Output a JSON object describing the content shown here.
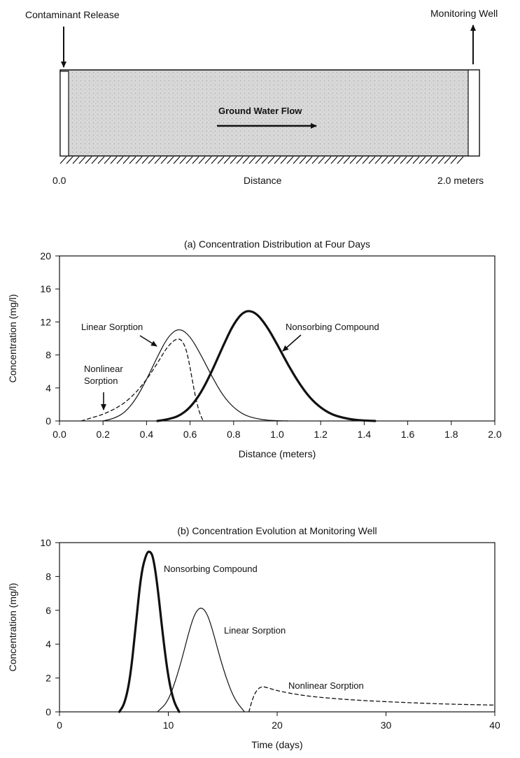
{
  "schematic": {
    "release_label": "Contaminant Release",
    "well_label": "Monitoring Well",
    "flow_label": "Ground Water Flow",
    "distance_label": "Distance",
    "start_label": "0.0",
    "end_label": "2.0 meters"
  },
  "chart_data": [
    {
      "type": "line",
      "title": "(a) Concentration Distribution at Four Days",
      "xlabel": "Distance (meters)",
      "ylabel": "Concentration (mg/l)",
      "xlim": [
        0,
        2.0
      ],
      "ylim": [
        0,
        20
      ],
      "xticks": [
        "0.0",
        "0.2",
        "0.4",
        "0.6",
        "0.8",
        "1.0",
        "1.2",
        "1.4",
        "1.6",
        "1.8",
        "2.0"
      ],
      "yticks": [
        "0",
        "4",
        "8",
        "12",
        "16",
        "20"
      ],
      "grid": false,
      "series": [
        {
          "name": "Nonsorbing Compound",
          "style": "bold",
          "x": [
            0.45,
            0.5,
            0.55,
            0.6,
            0.65,
            0.7,
            0.75,
            0.8,
            0.85,
            0.9,
            0.95,
            1.0,
            1.05,
            1.1,
            1.15,
            1.2,
            1.25,
            1.3,
            1.35,
            1.4,
            1.45
          ],
          "y": [
            0.0,
            0.2,
            0.6,
            1.6,
            3.4,
            6.0,
            9.0,
            11.8,
            13.4,
            13.2,
            11.6,
            9.3,
            6.8,
            4.6,
            2.8,
            1.6,
            0.8,
            0.4,
            0.15,
            0.05,
            0.0
          ]
        },
        {
          "name": "Linear Sorption",
          "style": "thin",
          "x": [
            0.2,
            0.25,
            0.3,
            0.35,
            0.4,
            0.45,
            0.5,
            0.55,
            0.6,
            0.65,
            0.7,
            0.75,
            0.8,
            0.85,
            0.9,
            0.95,
            1.0,
            1.05
          ],
          "y": [
            0.0,
            0.3,
            1.0,
            2.6,
            5.0,
            7.8,
            10.3,
            11.3,
            10.3,
            8.0,
            5.4,
            3.1,
            1.6,
            0.7,
            0.3,
            0.1,
            0.03,
            0.0
          ],
          "label": "Linear Sorption"
        },
        {
          "name": "Nonlinear Sorption",
          "style": "dashed",
          "x": [
            0.1,
            0.15,
            0.2,
            0.25,
            0.3,
            0.35,
            0.4,
            0.45,
            0.5,
            0.55,
            0.58,
            0.6,
            0.62,
            0.64,
            0.66
          ],
          "y": [
            0.0,
            0.4,
            0.8,
            1.4,
            2.2,
            3.4,
            5.0,
            7.0,
            9.2,
            10.2,
            9.0,
            6.5,
            3.5,
            1.2,
            0.0
          ],
          "label": "Nonlinear\nSorption"
        }
      ]
    },
    {
      "type": "line",
      "title": "(b) Concentration Evolution at Monitoring Well",
      "xlabel": "Time (days)",
      "ylabel": "Concentration (mg/l)",
      "xlim": [
        0,
        40
      ],
      "ylim": [
        0,
        10
      ],
      "xticks": [
        "0",
        "10",
        "20",
        "30",
        "40"
      ],
      "yticks": [
        "0",
        "2",
        "4",
        "6",
        "8",
        "10"
      ],
      "grid": false,
      "series": [
        {
          "name": "Nonsorbing Compound",
          "style": "bold",
          "x": [
            5.5,
            6.0,
            6.5,
            7.0,
            7.5,
            8.0,
            8.3,
            8.6,
            9.0,
            9.5,
            10.0,
            10.5,
            11.0
          ],
          "y": [
            0.0,
            0.5,
            2.0,
            5.0,
            8.2,
            9.4,
            9.5,
            9.2,
            7.5,
            4.5,
            2.0,
            0.6,
            0.0
          ],
          "label": "Nonsorbing Compound"
        },
        {
          "name": "Linear Sorption",
          "style": "thin",
          "x": [
            9.0,
            10.0,
            11.0,
            12.0,
            12.5,
            13.0,
            13.5,
            14.0,
            15.0,
            16.0,
            17.0
          ],
          "y": [
            0.0,
            0.6,
            2.5,
            5.0,
            5.9,
            6.2,
            5.9,
            5.0,
            2.6,
            0.8,
            0.0
          ],
          "label": "Linear Sorption"
        },
        {
          "name": "Nonlinear Sorption",
          "style": "dashed",
          "x": [
            17.4,
            17.8,
            18.2,
            18.6,
            19.0,
            20.0,
            22.0,
            24.0,
            27.0,
            30.0,
            33.0,
            36.0,
            40.0
          ],
          "y": [
            0.0,
            0.9,
            1.35,
            1.5,
            1.45,
            1.25,
            1.0,
            0.85,
            0.7,
            0.6,
            0.52,
            0.45,
            0.4
          ],
          "label": "Nonlinear Sorption"
        }
      ]
    }
  ]
}
